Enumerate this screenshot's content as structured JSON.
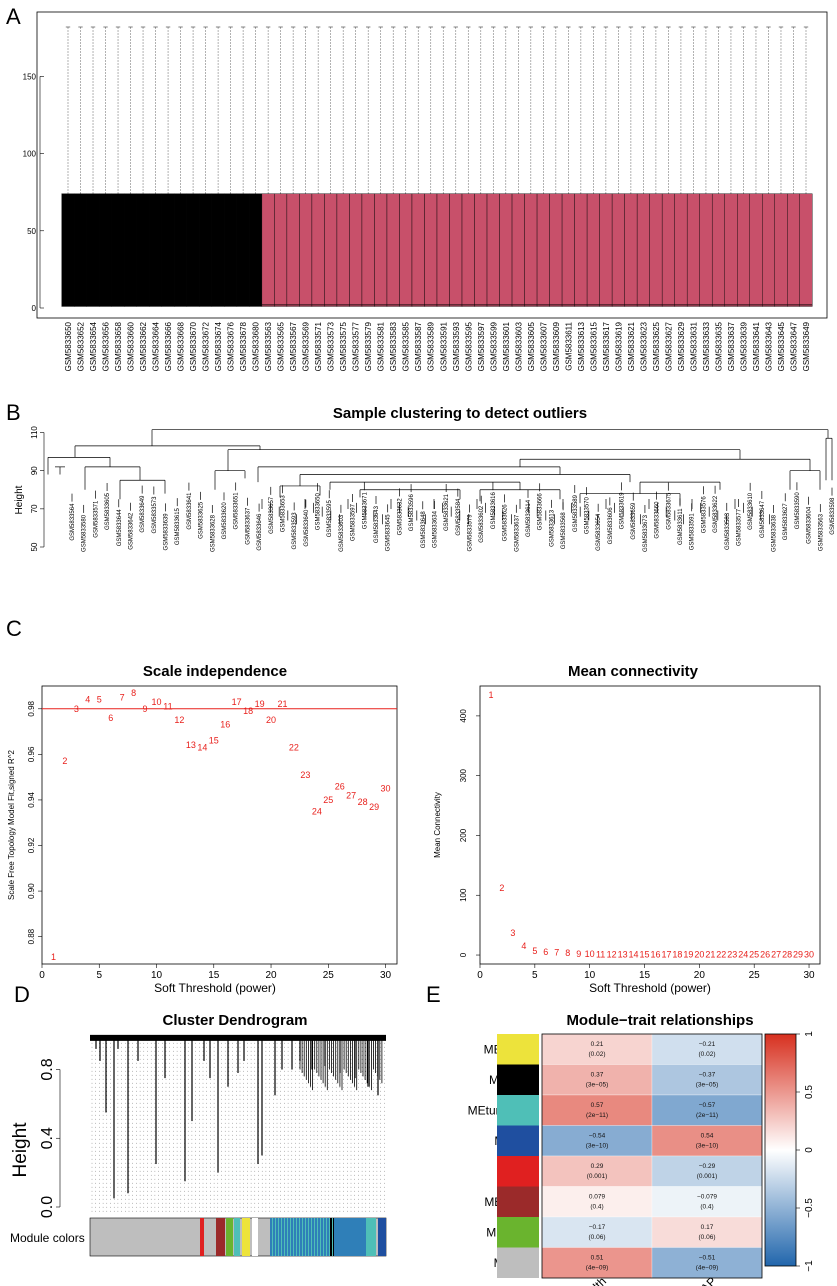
{
  "chart_data": [
    {
      "panel": "A",
      "type": "box",
      "yticks": [
        0,
        50,
        100,
        150
      ],
      "ylim": [
        0,
        180
      ],
      "box": {
        "min": 0,
        "q1": 1,
        "median": 2,
        "q3": 74,
        "whisker_high": 185
      },
      "group_colors": {
        "black": "#000000",
        "pink": "#c8506a"
      },
      "groups": [
        {
          "color": "black",
          "samples": [
            "GSM5833650",
            "GSM5833652",
            "GSM5833654",
            "GSM5833656",
            "GSM5833658",
            "GSM5833660",
            "GSM5833662",
            "GSM5833664",
            "GSM5833666",
            "GSM5833668",
            "GSM5833670",
            "GSM5833672",
            "GSM5833674",
            "GSM5833676",
            "GSM5833678",
            "GSM5833680"
          ]
        },
        {
          "color": "pink",
          "samples": [
            "GSM5833563",
            "GSM5833565",
            "GSM5833567",
            "GSM5833569",
            "GSM5833571",
            "GSM5833573",
            "GSM5833575",
            "GSM5833577",
            "GSM5833579",
            "GSM5833581",
            "GSM5833583",
            "GSM5833585",
            "GSM5833587",
            "GSM5833589",
            "GSM5833591",
            "GSM5833593",
            "GSM5833595",
            "GSM5833597",
            "GSM5833599",
            "GSM5833601",
            "GSM5833603",
            "GSM5833605",
            "GSM5833607",
            "GSM5833609",
            "GSM5833611",
            "GSM5833613",
            "GSM5833615",
            "GSM5833617",
            "GSM5833619",
            "GSM5833621",
            "GSM5833623",
            "GSM5833625",
            "GSM5833627",
            "GSM5833629",
            "GSM5833631",
            "GSM5833633",
            "GSM5833635",
            "GSM5833637",
            "GSM5833639",
            "GSM5833641",
            "GSM5833643",
            "GSM5833645",
            "GSM5833647",
            "GSM5833649"
          ]
        }
      ]
    },
    {
      "panel": "B",
      "type": "dendrogram",
      "title": "Sample clustering to detect outliers",
      "ylabel": "Height",
      "yticks": [
        50,
        70,
        90,
        110
      ],
      "ylim": [
        50,
        115
      ],
      "leaf_labels": [
        "GSM5833564",
        "GSM5833580",
        "GSM5833571",
        "GSM5833605",
        "GSM5833644",
        "GSM5833642",
        "GSM5833649",
        "GSM5833573",
        "GSM5833639",
        "GSM5833615",
        "GSM5833641",
        "GSM5833625",
        "GSM5833628",
        "GSM5833620",
        "GSM5833651",
        "GSM5833637",
        "GSM5833646",
        "GSM5833657",
        "GSM5833653",
        "GSM5833593",
        "GSM5833640",
        "GSM5833650",
        "GSM5833595",
        "GSM5833603",
        "GSM5833597",
        "GSM5833671",
        "GSM5833643",
        "GSM5833645",
        "GSM5833632",
        "GSM5833596",
        "GSM5833648",
        "GSM5833634",
        "GSM5833621",
        "GSM5833584",
        "GSM5833579",
        "GSM5833602",
        "GSM5833616",
        "GSM5833626",
        "GSM5833637",
        "GSM5833614",
        "GSM5833666",
        "GSM5833613",
        "GSM5833568",
        "GSM5833589",
        "GSM5833570",
        "GSM5833654",
        "GSM5833606",
        "GSM5833619",
        "GSM5833659",
        "GSM5833673",
        "GSM5833660",
        "GSM5833675",
        "GSM5833611",
        "GSM5833591",
        "GSM5833576",
        "GSM5833622",
        "GSM5833583",
        "GSM5833577",
        "GSM5833610",
        "GSM5833647",
        "GSM5833638",
        "GSM5833627",
        "GSM5833590",
        "GSM5833604",
        "GSM5833563",
        "GSM5833598"
      ]
    },
    {
      "panel": "C-left",
      "type": "scatter",
      "title": "Scale independence",
      "xlabel": "Soft Threshold (power)",
      "ylabel": "Scale Free Topology Model Fit,signed R^2",
      "xlim": [
        0,
        31
      ],
      "ylim": [
        0.868,
        0.99
      ],
      "xticks": [
        0,
        5,
        10,
        15,
        20,
        25,
        30
      ],
      "yticks": [
        0.88,
        0.9,
        0.92,
        0.94,
        0.96,
        0.98
      ],
      "hline": 0.98,
      "x": [
        1,
        2,
        3,
        4,
        5,
        6,
        7,
        8,
        9,
        10,
        11,
        12,
        13,
        14,
        15,
        16,
        17,
        18,
        19,
        20,
        21,
        22,
        23,
        24,
        25,
        26,
        27,
        28,
        29,
        30
      ],
      "y": [
        0.871,
        0.957,
        0.98,
        0.984,
        0.984,
        0.976,
        0.985,
        0.987,
        0.98,
        0.983,
        0.981,
        0.975,
        0.964,
        0.963,
        0.966,
        0.973,
        0.983,
        0.979,
        0.982,
        0.975,
        0.982,
        0.963,
        0.951,
        0.935,
        0.94,
        0.946,
        0.942,
        0.939,
        0.937,
        0.945
      ]
    },
    {
      "panel": "C-right",
      "type": "scatter",
      "title": "Mean connectivity",
      "xlabel": "Soft Threshold (power)",
      "ylabel": "Mean Connectivity",
      "xlim": [
        0,
        31
      ],
      "ylim": [
        -15,
        450
      ],
      "xticks": [
        0,
        5,
        10,
        15,
        20,
        25,
        30
      ],
      "yticks": [
        0,
        100,
        200,
        300,
        400
      ],
      "x": [
        1,
        2,
        3,
        4,
        5,
        6,
        7,
        8,
        9,
        10,
        11,
        12,
        13,
        14,
        15,
        16,
        17,
        18,
        19,
        20,
        21,
        22,
        23,
        24,
        25,
        26,
        27,
        28,
        29,
        30
      ],
      "y": [
        435,
        112,
        37,
        15,
        7,
        5,
        4,
        3,
        2,
        1.5,
        1,
        1,
        1,
        1,
        1,
        1,
        1,
        1,
        1,
        1,
        1,
        1,
        1,
        1,
        1,
        1,
        1,
        1,
        1,
        1
      ]
    },
    {
      "panel": "D",
      "type": "dendrogram",
      "title": "Cluster Dendrogram",
      "ylabel": "Height",
      "yticks": [
        "0.0",
        "0.4",
        "0.8"
      ],
      "ylim": [
        0,
        1
      ],
      "color_bar_label": "Module colors"
    },
    {
      "panel": "E",
      "type": "heatmap",
      "title": "Module−trait relationships",
      "columns": [
        "Health",
        "AP"
      ],
      "rows": [
        {
          "module": "MEyellow",
          "color": "#ede33b",
          "values": [
            "0.21",
            "−0.21"
          ],
          "pvalues": [
            "(0.02)",
            "(0.02)"
          ],
          "r": [
            0.21,
            -0.21
          ]
        },
        {
          "module": "MEblack",
          "color": "#000000",
          "values": [
            "0.37",
            "−0.37"
          ],
          "pvalues": [
            "(3e−05)",
            "(3e−05)"
          ],
          "r": [
            0.37,
            -0.37
          ]
        },
        {
          "module": "MEturquoise",
          "color": "#4fbfb7",
          "values": [
            "0.57",
            "−0.57"
          ],
          "pvalues": [
            "(2e−11)",
            "(2e−11)"
          ],
          "r": [
            0.57,
            -0.57
          ]
        },
        {
          "module": "MEblue",
          "color": "#1f4fa0",
          "values": [
            "−0.54",
            "0.54"
          ],
          "pvalues": [
            "(3e−10)",
            "(3e−10)"
          ],
          "r": [
            -0.54,
            0.54
          ]
        },
        {
          "module": "MEred",
          "color": "#e02020",
          "values": [
            "0.29",
            "−0.29"
          ],
          "pvalues": [
            "(0.001)",
            "(0.001)"
          ],
          "r": [
            0.29,
            -0.29
          ]
        },
        {
          "module": "MEbrown",
          "color": "#9b2a2a",
          "values": [
            "0.079",
            "−0.079"
          ],
          "pvalues": [
            "(0.4)",
            "(0.4)"
          ],
          "r": [
            0.079,
            -0.079
          ]
        },
        {
          "module": "MEgreen",
          "color": "#6ab42e",
          "values": [
            "−0.17",
            "0.17"
          ],
          "pvalues": [
            "(0.06)",
            "(0.06)"
          ],
          "r": [
            -0.17,
            0.17
          ]
        },
        {
          "module": "MEgrey",
          "color": "#bebebe",
          "values": [
            "0.51",
            "−0.51"
          ],
          "pvalues": [
            "(4e−09)",
            "(4e−09)"
          ],
          "r": [
            0.51,
            -0.51
          ]
        }
      ],
      "legend_ticks": [
        "1",
        "0.5",
        "0",
        "−0.5",
        "−1"
      ],
      "legend_values": [
        1,
        0.5,
        0,
        -0.5,
        -1
      ]
    }
  ],
  "labels": {
    "a": "A",
    "b": "B",
    "c": "C",
    "d": "D",
    "e": "E"
  },
  "colors": {
    "accent_red": "#e8201c"
  }
}
